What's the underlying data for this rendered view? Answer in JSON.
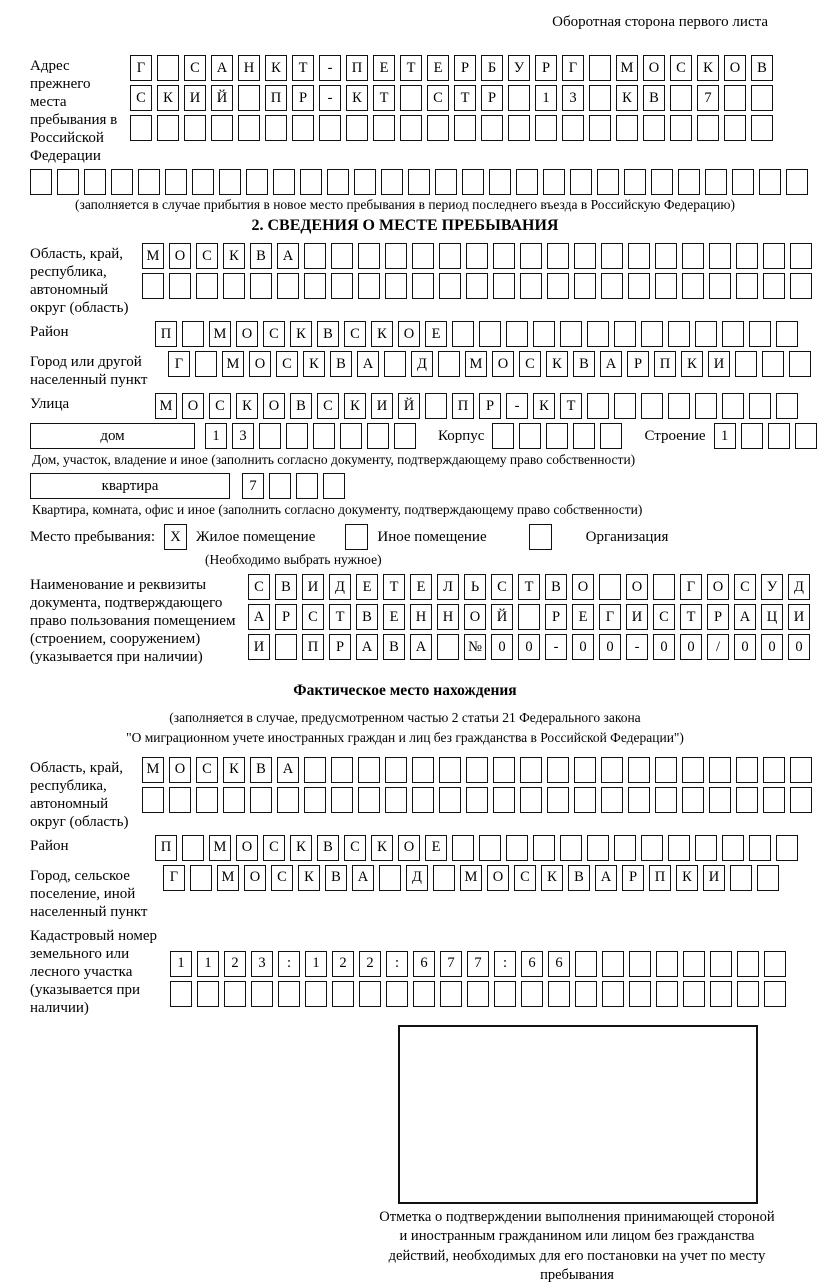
{
  "header": {
    "note": "Оборотная сторона первого листа"
  },
  "prev_address": {
    "label": "Адрес прежнего места пребывания в Российской Федерации",
    "rows": [
      {
        "chars": "Г САНКТ-ПЕТЕРБУРГ МОСКОВ",
        "count": 24
      },
      {
        "chars": "СКИЙ ПР-КТ СТР 13 КВ 7",
        "count": 24
      },
      {
        "chars": "",
        "count": 24
      },
      {
        "chars": "",
        "count": 29
      }
    ],
    "caption": "(заполняется в случае прибытия в новое место пребывания в период последнего въезда в Российскую Федерацию)"
  },
  "section2": {
    "title": "2. СВЕДЕНИЯ О МЕСТЕ ПРЕБЫВАНИЯ",
    "oblast": {
      "label": "Область, край, республика, автономный округ (область)",
      "rows": [
        {
          "chars": "МОСКВА",
          "count": 25
        },
        {
          "chars": "",
          "count": 25
        }
      ]
    },
    "raion": {
      "label": "Район",
      "row": {
        "chars": "П МОСКВСКОЕ",
        "count": 24
      }
    },
    "gorod": {
      "label": "Город или другой населенный пункт",
      "row": {
        "chars": "Г МОСКВА Д МОСКВАРПКИ",
        "count": 24
      }
    },
    "ulitsa": {
      "label": "Улица",
      "row": {
        "chars": "МОСКОВСКИЙ ПР-КТ",
        "count": 24
      }
    },
    "dom": {
      "box_label": "дом",
      "cells": {
        "chars": "13",
        "count": 8
      },
      "korpus_label": "Корпус",
      "korpus_cells": {
        "chars": "",
        "count": 5
      },
      "stroenie_label": "Строение",
      "stroenie_cells": {
        "chars": "1",
        "count": 4
      }
    },
    "dom_caption": "Дом, участок, владение и иное (заполнить согласно документу, подтверждающему право собственности)",
    "kvartira": {
      "box_label": "квартира",
      "cells": {
        "chars": "7",
        "count": 4
      }
    },
    "kvartira_caption": "Квартира, комната, офис и иное (заполнить согласно документу, подтверждающему право собственности)",
    "place_type": {
      "label": "Место пребывания:",
      "options": [
        {
          "label": "Жилое помещение",
          "mark": "X"
        },
        {
          "label": "Иное помещение",
          "mark": ""
        },
        {
          "label": "Организация",
          "mark": ""
        }
      ],
      "note": "(Необходимо выбрать нужное)"
    },
    "document": {
      "label": "Наименование и реквизиты документа, подтверждающего право пользования помещением (строением, сооружением) (указывается при наличии)",
      "rows": [
        {
          "chars": "СВИДЕТЕЛЬСТВО О ГОСУД",
          "count": 21
        },
        {
          "chars": "АРСТВЕННОЙ РЕГИСТРАЦИ",
          "count": 21
        },
        {
          "chars": "И ПРАВА №00-00-00/000",
          "count": 21
        }
      ]
    }
  },
  "actual": {
    "title": "Фактическое место нахождения",
    "caption_line1": "(заполняется в случае, предусмотренном частью 2 статьи 21 Федерального закона",
    "caption_line2": "\"О миграционном учете иностранных граждан и лиц без гражданства в Российской Федерации\")",
    "oblast": {
      "label": "Область, край, республика, автономный округ (область)",
      "rows": [
        {
          "chars": "МОСКВА",
          "count": 25
        },
        {
          "chars": "",
          "count": 25
        }
      ]
    },
    "raion": {
      "label": "Район",
      "row": {
        "chars": "П МОСКВСКОЕ",
        "count": 24
      }
    },
    "gorod": {
      "label": "Город, сельское поселение, иной населенный пункт",
      "row": {
        "chars": "Г МОСКВА Д МОСКВАРПКИ",
        "count": 23
      }
    },
    "kadastr": {
      "label": "Кадастровый номер земельного или лесного участка (указывается при наличии)",
      "rows": [
        {
          "chars": "1123:122:677:66",
          "count": 23
        },
        {
          "chars": "",
          "count": 23
        }
      ]
    },
    "stamp_caption": "Отметка о подтверждении выполнения принимающей стороной и иностранным гражданином или лицом без гражданства действий, необходимых для его постановки на учет по месту пребывания"
  }
}
